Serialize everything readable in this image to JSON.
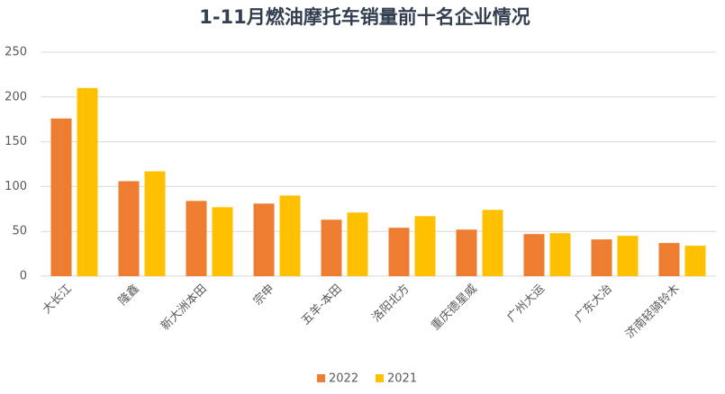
{
  "chart_data": {
    "type": "bar",
    "title": "1-11月燃油摩托车销量前十名企业情况",
    "categories": [
      "大长江",
      "隆鑫",
      "新大洲本田",
      "宗申",
      "五羊-本田",
      "洛阳北方",
      "重庆德星威",
      "广州大运",
      "广东大冶",
      "济南轻骑铃木"
    ],
    "series": [
      {
        "name": "2022",
        "color": "#ed7d31",
        "values": [
          176,
          106,
          84,
          81,
          63,
          54,
          52,
          47,
          41,
          37
        ]
      },
      {
        "name": "2021",
        "color": "#ffc000",
        "values": [
          210,
          117,
          77,
          90,
          71,
          67,
          74,
          48,
          45,
          34
        ]
      }
    ],
    "ylim": [
      0,
      250
    ],
    "yticks": [
      0,
      50,
      100,
      150,
      200,
      250
    ],
    "grid": true,
    "legend": "bottom"
  }
}
